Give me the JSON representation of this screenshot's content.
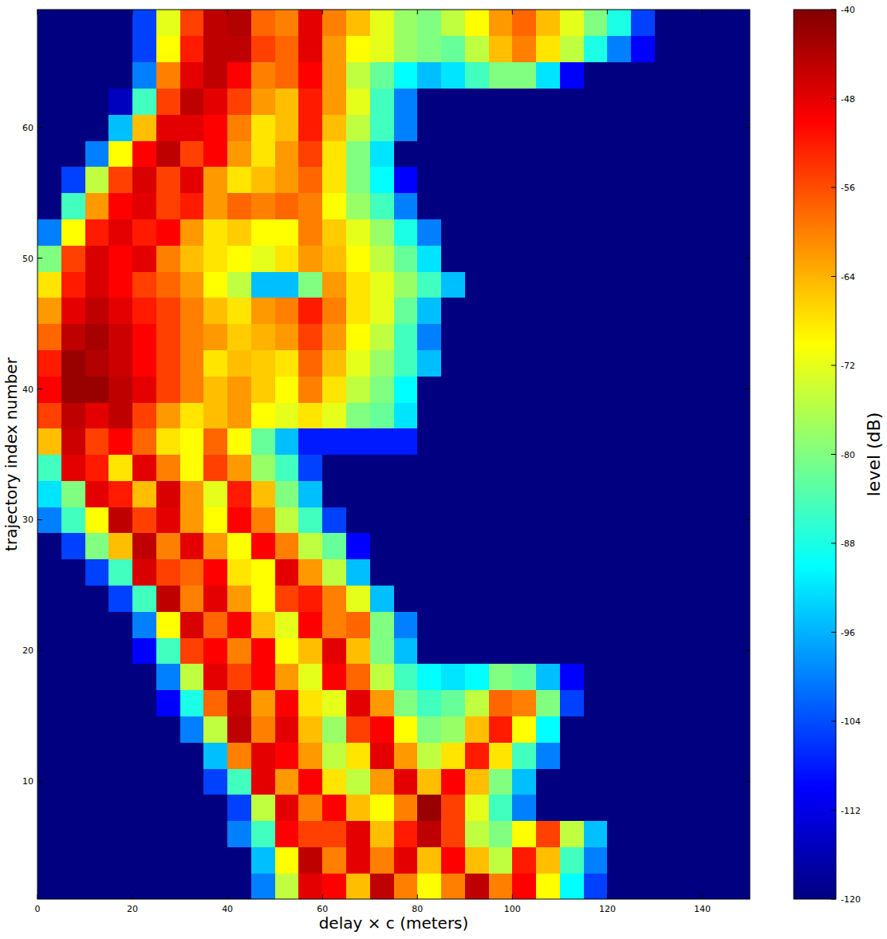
{
  "chart_data": {
    "type": "heatmap",
    "xlabel": "delay × c (meters)",
    "ylabel": "trajectory index number",
    "xlim": [
      0,
      150
    ],
    "ylim": [
      1,
      69
    ],
    "xticks": [
      0,
      20,
      40,
      60,
      80,
      100,
      120,
      140
    ],
    "yticks": [
      10,
      20,
      30,
      40,
      50,
      60
    ],
    "x": [
      2.5,
      7.5,
      12.5,
      17.5,
      22.5,
      27.5,
      32.5,
      37.5,
      42.5,
      47.5,
      52.5,
      57.5,
      62.5,
      67.5,
      72.5,
      77.5,
      82.5,
      87.5,
      92.5,
      97.5,
      102.5,
      107.5,
      112.5,
      117.5,
      122.5,
      127.5,
      132.5,
      137.5,
      142.5,
      147.5
    ],
    "y": [
      2,
      4,
      6,
      8,
      10,
      12,
      14,
      16,
      18,
      20,
      22,
      24,
      26,
      28,
      30,
      32,
      34,
      36,
      38,
      40,
      42,
      44,
      46,
      48,
      50,
      52,
      54,
      56,
      58,
      60,
      62,
      64,
      66,
      68
    ],
    "cells": [
      [
        -120,
        -120,
        -120,
        -120,
        -120,
        -120,
        -120,
        -120,
        -120,
        -100,
        -75,
        -48,
        -50,
        -65,
        -45,
        -60,
        -70,
        -60,
        -45,
        -60,
        -50,
        -70,
        -90,
        -105,
        -120,
        -120,
        -120,
        -120,
        -120,
        -120
      ],
      [
        -120,
        -120,
        -120,
        -120,
        -120,
        -120,
        -120,
        -120,
        -120,
        -95,
        -70,
        -45,
        -60,
        -48,
        -60,
        -48,
        -65,
        -50,
        -65,
        -75,
        -52,
        -65,
        -85,
        -100,
        -120,
        -120,
        -120,
        -120,
        -120,
        -120
      ],
      [
        -120,
        -120,
        -120,
        -120,
        -120,
        -120,
        -120,
        -120,
        -100,
        -85,
        -50,
        -55,
        -55,
        -48,
        -65,
        -52,
        -45,
        -55,
        -75,
        -80,
        -70,
        -55,
        -75,
        -95,
        -120,
        -120,
        -120,
        -120,
        -120,
        -120
      ],
      [
        -120,
        -120,
        -120,
        -120,
        -120,
        -120,
        -120,
        -120,
        -105,
        -75,
        -48,
        -60,
        -50,
        -65,
        -70,
        -60,
        -42,
        -55,
        -72,
        -85,
        -100,
        -120,
        -120,
        -120,
        -120,
        -120,
        -120,
        -120,
        -120,
        -120
      ],
      [
        -120,
        -120,
        -120,
        -120,
        -120,
        -120,
        -120,
        -105,
        -85,
        -48,
        -62,
        -50,
        -68,
        -75,
        -62,
        -48,
        -65,
        -50,
        -65,
        -80,
        -95,
        -120,
        -120,
        -120,
        -120,
        -120,
        -120,
        -120,
        -120,
        -120
      ],
      [
        -120,
        -120,
        -120,
        -120,
        -120,
        -120,
        -120,
        -95,
        -60,
        -48,
        -50,
        -62,
        -75,
        -68,
        -48,
        -62,
        -75,
        -68,
        -52,
        -68,
        -85,
        -100,
        -120,
        -120,
        -120,
        -120,
        -120,
        -120,
        -120,
        -120
      ],
      [
        -120,
        -120,
        -120,
        -120,
        -120,
        -120,
        -100,
        -75,
        -45,
        -60,
        -48,
        -65,
        -78,
        -55,
        -50,
        -70,
        -80,
        -78,
        -65,
        -52,
        -70,
        -90,
        -120,
        -120,
        -120,
        -120,
        -120,
        -120,
        -120,
        -120
      ],
      [
        -120,
        -120,
        -120,
        -120,
        -120,
        -110,
        -88,
        -58,
        -46,
        -62,
        -50,
        -68,
        -72,
        -48,
        -62,
        -80,
        -85,
        -82,
        -75,
        -58,
        -60,
        -80,
        -105,
        -120,
        -120,
        -120,
        -120,
        -120,
        -120,
        -120
      ],
      [
        -120,
        -120,
        -120,
        -120,
        -120,
        -100,
        -75,
        -48,
        -55,
        -50,
        -62,
        -72,
        -50,
        -58,
        -75,
        -85,
        -90,
        -92,
        -90,
        -80,
        -82,
        -95,
        -110,
        -120,
        -120,
        -120,
        -120,
        -120,
        -120,
        -120
      ],
      [
        -120,
        -120,
        -120,
        -120,
        -110,
        -85,
        -55,
        -50,
        -60,
        -50,
        -70,
        -65,
        -48,
        -65,
        -80,
        -95,
        -120,
        -120,
        -120,
        -120,
        -120,
        -120,
        -120,
        -120,
        -120,
        -120,
        -120,
        -120,
        -120,
        -120
      ],
      [
        -120,
        -120,
        -120,
        -120,
        -100,
        -70,
        -47,
        -58,
        -50,
        -65,
        -72,
        -50,
        -60,
        -58,
        -80,
        -100,
        -120,
        -120,
        -120,
        -120,
        -120,
        -120,
        -120,
        -120,
        -120,
        -120,
        -120,
        -120,
        -120,
        -120
      ],
      [
        -120,
        -120,
        -120,
        -105,
        -85,
        -45,
        -60,
        -48,
        -62,
        -70,
        -55,
        -52,
        -60,
        -72,
        -95,
        -120,
        -120,
        -120,
        -120,
        -120,
        -120,
        -120,
        -120,
        -120,
        -120,
        -120,
        -120,
        -120,
        -120,
        -120
      ],
      [
        -120,
        -120,
        -105,
        -85,
        -47,
        -55,
        -58,
        -50,
        -68,
        -70,
        -48,
        -62,
        -75,
        -95,
        -120,
        -120,
        -120,
        -120,
        -120,
        -120,
        -120,
        -120,
        -120,
        -120,
        -120,
        -120,
        -120,
        -120,
        -120,
        -120
      ],
      [
        -120,
        -105,
        -80,
        -65,
        -45,
        -60,
        -48,
        -62,
        -70,
        -50,
        -60,
        -75,
        -82,
        -110,
        -120,
        -120,
        -120,
        -120,
        -120,
        -120,
        -120,
        -120,
        -120,
        -120,
        -120,
        -120,
        -120,
        -120,
        -120,
        -120
      ],
      [
        -100,
        -85,
        -70,
        -45,
        -55,
        -48,
        -62,
        -70,
        -50,
        -60,
        -75,
        -85,
        -105,
        -120,
        -120,
        -120,
        -120,
        -120,
        -120,
        -120,
        -120,
        -120,
        -120,
        -120,
        -120,
        -120,
        -120,
        -120,
        -120,
        -120
      ],
      [
        -92,
        -80,
        -48,
        -52,
        -65,
        -47,
        -62,
        -72,
        -52,
        -65,
        -80,
        -95,
        -120,
        -120,
        -120,
        -120,
        -120,
        -120,
        -120,
        -120,
        -120,
        -120,
        -120,
        -120,
        -120,
        -120,
        -120,
        -120,
        -120,
        -120
      ],
      [
        -85,
        -48,
        -52,
        -68,
        -48,
        -60,
        -70,
        -55,
        -62,
        -78,
        -85,
        -105,
        -120,
        -120,
        -120,
        -120,
        -120,
        -120,
        -120,
        -120,
        -120,
        -120,
        -120,
        -120,
        -120,
        -120,
        -120,
        -120,
        -120,
        -120
      ],
      [
        -65,
        -46,
        -55,
        -50,
        -58,
        -68,
        -70,
        -58,
        -70,
        -82,
        -95,
        -108,
        -108,
        -108,
        -108,
        -108,
        -120,
        -120,
        -120,
        -120,
        -120,
        -120,
        -120,
        -120,
        -120,
        -120,
        -120,
        -120,
        -120,
        -120
      ],
      [
        -55,
        -45,
        -48,
        -45,
        -55,
        -62,
        -68,
        -65,
        -62,
        -70,
        -72,
        -68,
        -72,
        -80,
        -82,
        -92,
        -120,
        -120,
        -120,
        -120,
        -120,
        -120,
        -120,
        -120,
        -120,
        -120,
        -120,
        -120,
        -120,
        -120
      ],
      [
        -50,
        -42,
        -42,
        -45,
        -48,
        -55,
        -60,
        -65,
        -62,
        -66,
        -70,
        -60,
        -68,
        -75,
        -80,
        -90,
        -120,
        -120,
        -120,
        -120,
        -120,
        -120,
        -120,
        -120,
        -120,
        -120,
        -120,
        -120,
        -120,
        -120
      ],
      [
        -52,
        -42,
        -44,
        -46,
        -50,
        -55,
        -60,
        -68,
        -65,
        -66,
        -68,
        -58,
        -65,
        -72,
        -78,
        -85,
        -95,
        -120,
        -120,
        -120,
        -120,
        -120,
        -120,
        -120,
        -120,
        -120,
        -120,
        -120,
        -120,
        -120
      ],
      [
        -58,
        -45,
        -43,
        -46,
        -50,
        -55,
        -60,
        -62,
        -66,
        -64,
        -62,
        -55,
        -62,
        -70,
        -75,
        -85,
        -100,
        -120,
        -120,
        -120,
        -120,
        -120,
        -120,
        -120,
        -120,
        -120,
        -120,
        -120,
        -120,
        -120
      ],
      [
        -62,
        -48,
        -45,
        -48,
        -52,
        -55,
        -60,
        -65,
        -68,
        -62,
        -60,
        -52,
        -60,
        -68,
        -72,
        -82,
        -95,
        -120,
        -120,
        -120,
        -120,
        -120,
        -120,
        -120,
        -120,
        -120,
        -120,
        -120,
        -120,
        -120
      ],
      [
        -68,
        -52,
        -47,
        -50,
        -55,
        -58,
        -62,
        -70,
        -75,
        -95,
        -95,
        -80,
        -62,
        -68,
        -72,
        -78,
        -85,
        -95,
        -120,
        -120,
        -120,
        -120,
        -120,
        -120,
        -120,
        -120,
        -120,
        -120,
        -120,
        -120
      ],
      [
        -80,
        -55,
        -47,
        -50,
        -48,
        -60,
        -65,
        -68,
        -70,
        -72,
        -68,
        -62,
        -65,
        -70,
        -75,
        -82,
        -92,
        -120,
        -120,
        -120,
        -120,
        -120,
        -120,
        -120,
        -120,
        -120,
        -120,
        -120,
        -120,
        -120
      ],
      [
        -100,
        -70,
        -52,
        -48,
        -52,
        -50,
        -62,
        -68,
        -66,
        -70,
        -70,
        -60,
        -66,
        -72,
        -78,
        -88,
        -100,
        -120,
        -120,
        -120,
        -120,
        -120,
        -120,
        -120,
        -120,
        -120,
        -120,
        -120,
        -120,
        -120
      ],
      [
        -120,
        -85,
        -62,
        -50,
        -48,
        -55,
        -52,
        -62,
        -58,
        -60,
        -58,
        -60,
        -70,
        -78,
        -85,
        -100,
        -120,
        -120,
        -120,
        -120,
        -120,
        -120,
        -120,
        -120,
        -120,
        -120,
        -120,
        -120,
        -120,
        -120
      ],
      [
        -120,
        -105,
        -75,
        -55,
        -47,
        -55,
        -48,
        -62,
        -68,
        -65,
        -62,
        -58,
        -68,
        -80,
        -90,
        -110,
        -120,
        -120,
        -120,
        -120,
        -120,
        -120,
        -120,
        -120,
        -120,
        -120,
        -120,
        -120,
        -120,
        -120
      ],
      [
        -120,
        -120,
        -100,
        -70,
        -50,
        -45,
        -55,
        -50,
        -62,
        -68,
        -62,
        -55,
        -68,
        -80,
        -92,
        -120,
        -120,
        -120,
        -120,
        -120,
        -120,
        -120,
        -120,
        -120,
        -120,
        -120,
        -120,
        -120,
        -120,
        -120
      ],
      [
        -120,
        -120,
        -120,
        -95,
        -65,
        -48,
        -48,
        -50,
        -60,
        -68,
        -65,
        -52,
        -65,
        -75,
        -85,
        -100,
        -120,
        -120,
        -120,
        -120,
        -120,
        -120,
        -120,
        -120,
        -120,
        -120,
        -120,
        -120,
        -120,
        -120
      ],
      [
        -120,
        -120,
        -120,
        -115,
        -85,
        -55,
        -45,
        -48,
        -55,
        -62,
        -65,
        -52,
        -62,
        -72,
        -85,
        -100,
        -120,
        -120,
        -120,
        -120,
        -120,
        -120,
        -120,
        -120,
        -120,
        -120,
        -120,
        -120,
        -120,
        -120
      ],
      [
        -120,
        -120,
        -120,
        -120,
        -100,
        -60,
        -48,
        -45,
        -50,
        -60,
        -58,
        -50,
        -62,
        -75,
        -82,
        -90,
        -95,
        -92,
        -85,
        -80,
        -80,
        -92,
        -110,
        -120,
        -120,
        -120,
        -120,
        -120,
        -120,
        -120
      ],
      [
        -120,
        -120,
        -120,
        -120,
        -105,
        -70,
        -52,
        -45,
        -45,
        -55,
        -58,
        -48,
        -62,
        -70,
        -72,
        -78,
        -80,
        -82,
        -75,
        -65,
        -60,
        -68,
        -75,
        -88,
        -100,
        -110,
        -120,
        -120,
        -120,
        -120
      ],
      [
        -120,
        -120,
        -120,
        -120,
        -105,
        -72,
        -55,
        -45,
        -44,
        -58,
        -60,
        -48,
        -60,
        -65,
        -72,
        -78,
        -80,
        -75,
        -70,
        -62,
        -58,
        -65,
        -72,
        -80,
        -88,
        -105,
        -120,
        -120,
        -120,
        -120
      ]
    ],
    "colorbar": {
      "lim": [
        -120,
        -40
      ],
      "ticks": [
        -120,
        -112,
        -104,
        -96,
        -88,
        -80,
        -72,
        -64,
        -56,
        -48,
        -40
      ],
      "label": "level (dB)"
    }
  }
}
